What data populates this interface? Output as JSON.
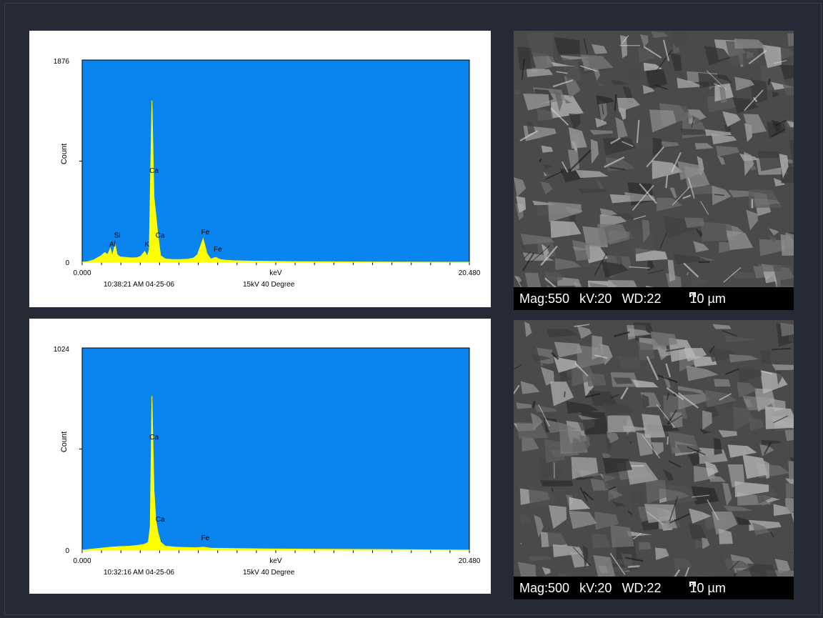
{
  "chart_data": [
    {
      "type": "line",
      "title": "",
      "ylabel": "Count",
      "xlabel": "keV",
      "xlim": [
        0.0,
        20.48
      ],
      "ylim": [
        0,
        1876
      ],
      "x_tick_labels": [
        "0.000",
        "20.480"
      ],
      "y_tick_labels": [
        "1876",
        "0"
      ],
      "timestamp": "10:38:21 AM  04-25-06",
      "conditions": "15kV 40 Degree",
      "background_color": "#0a85f0",
      "series_color": "#ffff00",
      "series": [
        {
          "x": [
            0.0,
            0.3,
            0.6,
            0.8,
            1.0,
            1.2,
            1.35,
            1.49,
            1.6,
            1.74,
            1.85,
            2.0,
            2.3,
            2.6,
            2.9,
            3.1,
            3.31,
            3.45,
            3.55,
            3.69,
            3.8,
            4.01,
            4.15,
            4.4,
            4.8,
            5.2,
            5.6,
            5.9,
            6.1,
            6.4,
            6.6,
            6.8,
            7.06,
            7.3,
            7.6,
            8.0,
            9.0,
            10.0,
            11.0,
            12.0,
            14.0,
            16.0,
            18.0,
            20.48
          ],
          "y": [
            0,
            5,
            20,
            40,
            60,
            90,
            70,
            130,
            60,
            170,
            70,
            50,
            45,
            40,
            42,
            55,
            100,
            55,
            120,
            1500,
            600,
            250,
            60,
            30,
            25,
            25,
            28,
            40,
            70,
            220,
            80,
            30,
            45,
            25,
            18,
            14,
            10,
            8,
            6,
            5,
            3,
            2,
            1,
            0
          ]
        }
      ],
      "annotations": [
        {
          "label": "Al",
          "x": 1.49,
          "y": 145
        },
        {
          "label": "Si",
          "x": 1.74,
          "y": 230
        },
        {
          "label": "K",
          "x": 3.31,
          "y": 145
        },
        {
          "label": "Ca",
          "x": 3.69,
          "y": 830
        },
        {
          "label": "Ca",
          "x": 4.01,
          "y": 230
        },
        {
          "label": "Fe",
          "x": 6.4,
          "y": 260
        },
        {
          "label": "Fe",
          "x": 7.06,
          "y": 100
        }
      ]
    },
    {
      "type": "line",
      "title": "",
      "ylabel": "Count",
      "xlabel": "keV",
      "xlim": [
        0.0,
        20.48
      ],
      "ylim": [
        0,
        1024
      ],
      "x_tick_labels": [
        "0.000",
        "20.480"
      ],
      "y_tick_labels": [
        "1024",
        "0"
      ],
      "timestamp": "10:32:16 AM  04-25-06",
      "conditions": "15kV 40 Degree",
      "background_color": "#0a85f0",
      "series_color": "#ffff00",
      "series": [
        {
          "x": [
            0.0,
            0.5,
            1.0,
            1.5,
            2.0,
            2.5,
            3.0,
            3.3,
            3.5,
            3.6,
            3.69,
            3.8,
            3.9,
            4.01,
            4.15,
            4.4,
            5.0,
            6.0,
            6.4,
            6.8,
            8.0,
            10.0,
            12.0,
            14.0,
            16.0,
            18.0,
            20.48
          ],
          "y": [
            0,
            5,
            10,
            15,
            18,
            20,
            25,
            30,
            40,
            120,
            780,
            300,
            150,
            90,
            40,
            20,
            15,
            12,
            15,
            10,
            8,
            6,
            5,
            4,
            3,
            2,
            0
          ]
        }
      ],
      "annotations": [
        {
          "label": "Ca",
          "x": 3.69,
          "y": 560
        },
        {
          "label": "Ca",
          "x": 4.01,
          "y": 145
        },
        {
          "label": "Fe",
          "x": 6.4,
          "y": 50
        }
      ]
    }
  ],
  "sem_images": [
    {
      "mag": "Mag:550",
      "kv": "kV:20",
      "wd": "WD:22",
      "scale": "10 µm"
    },
    {
      "mag": "Mag:500",
      "kv": "kV:20",
      "wd": "WD:22",
      "scale": "10 µm"
    }
  ]
}
